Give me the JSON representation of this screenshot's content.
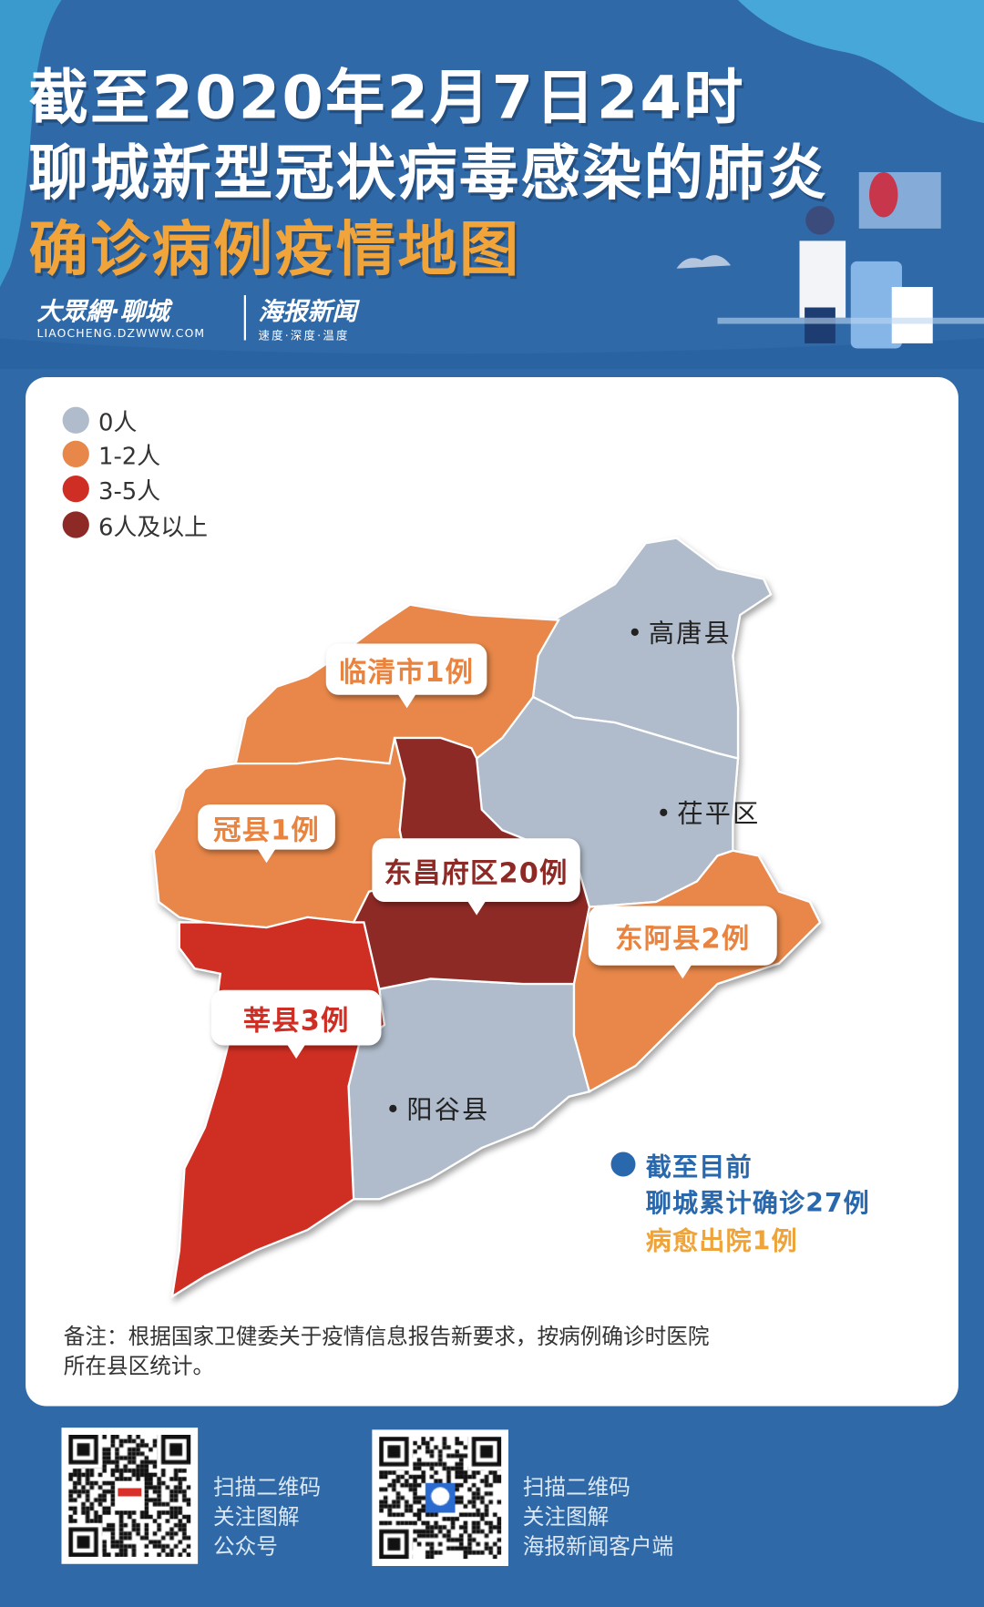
{
  "header": {
    "title_line1": "截至2020年2月7日24时",
    "title_line2": "聊城新型冠状病毒感染的肺炎",
    "title_line3": "确诊病例疫情地图",
    "logo1_text": "大眾網·聊城",
    "logo1_url": "LIAOCHENG.DZWWW.COM",
    "logo2_text": "海报新闻",
    "logo2_slogan": "速度·深度·温度"
  },
  "legend": [
    {
      "label": "0人",
      "color": "#b0bccb"
    },
    {
      "label": "1-2人",
      "color": "#e8874a"
    },
    {
      "label": "3-5人",
      "color": "#cf2e24"
    },
    {
      "label": "6人及以上",
      "color": "#8e2a26"
    }
  ],
  "regions": [
    {
      "name": "高唐县",
      "cases": 0,
      "label": "高唐县"
    },
    {
      "name": "茌平区",
      "cases": 0,
      "label": "茌平区"
    },
    {
      "name": "阳谷县",
      "cases": 0,
      "label": "阳谷县"
    },
    {
      "name": "临清市",
      "cases": 1,
      "label": "临清市1例"
    },
    {
      "name": "冠县",
      "cases": 1,
      "label": "冠县1例"
    },
    {
      "name": "东昌府区",
      "cases": 20,
      "label": "东昌府区20例"
    },
    {
      "name": "东阿县",
      "cases": 2,
      "label": "东阿县2例"
    },
    {
      "name": "莘县",
      "cases": 3,
      "label": "莘县3例"
    }
  ],
  "summary": {
    "line1": "截至目前",
    "line2": "聊城累计确诊27例",
    "line3": "病愈出院1例",
    "blue": "#2a68ad",
    "orange": "#eea43a"
  },
  "note": {
    "line1": "备注：根据国家卫健委关于疫情信息报告新要求，按病例确诊时医院",
    "line2": "所在县区统计。"
  },
  "footer": {
    "qr1": {
      "line1": "扫描二维码",
      "line2": "关注图解",
      "line3": "公众号"
    },
    "qr2": {
      "line1": "扫描二维码",
      "line2": "关注图解",
      "line3": "海报新闻客户端"
    }
  }
}
